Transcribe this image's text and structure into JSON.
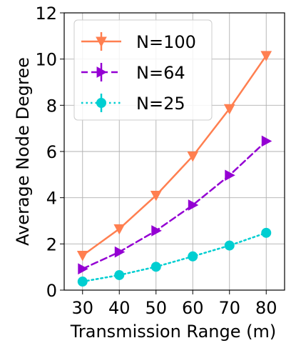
{
  "chart_data": {
    "type": "line",
    "title": "",
    "xlabel": "Transmission Range (m)",
    "ylabel": "Average Node Degree",
    "x": [
      30,
      40,
      50,
      60,
      70,
      80
    ],
    "xticks": [
      "30",
      "40",
      "50",
      "60",
      "70",
      "80"
    ],
    "yticks": [
      "0",
      "2",
      "4",
      "6",
      "8",
      "10",
      "12"
    ],
    "xlim": [
      25,
      85
    ],
    "ylim": [
      0,
      12
    ],
    "grid": true,
    "legend_position": "top-left",
    "series": [
      {
        "name": "N=100",
        "values": [
          1.5,
          2.65,
          4.1,
          5.8,
          7.85,
          10.15
        ],
        "color": "#ff7f50",
        "line_style": "solid",
        "marker": "triangle-down"
      },
      {
        "name": "N=64",
        "values": [
          0.92,
          1.65,
          2.57,
          3.68,
          4.97,
          6.45
        ],
        "color": "#9400d3",
        "line_style": "dashed",
        "marker": "triangle-right"
      },
      {
        "name": "N=25",
        "values": [
          0.37,
          0.65,
          1.01,
          1.46,
          1.93,
          2.48
        ],
        "color": "#00ced1",
        "line_style": "dotted",
        "marker": "circle"
      }
    ]
  }
}
